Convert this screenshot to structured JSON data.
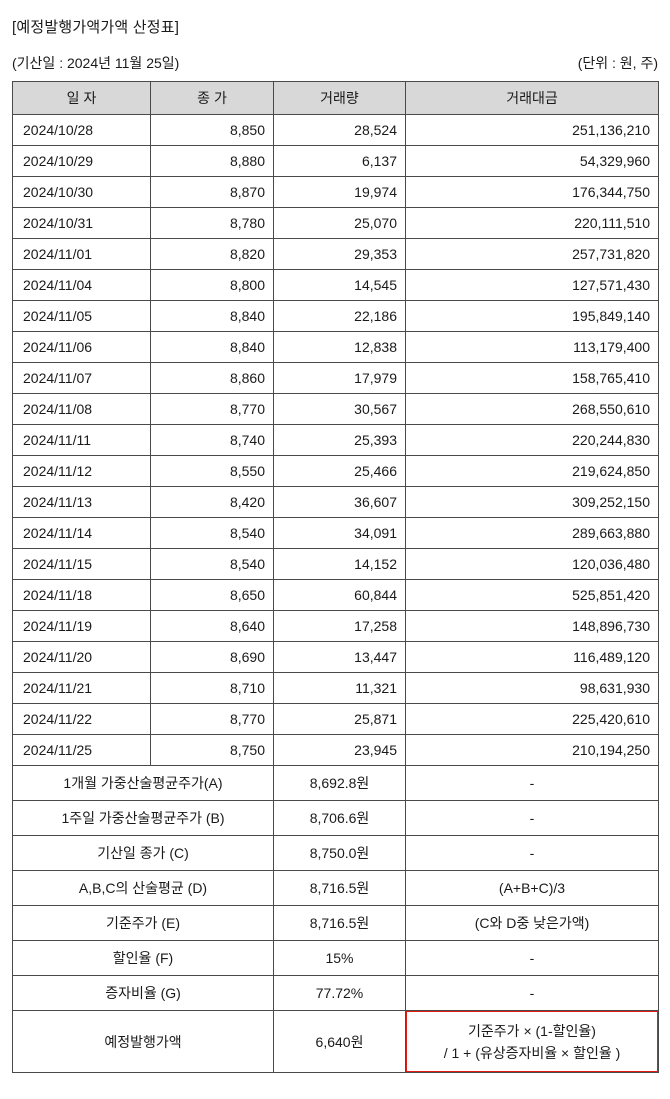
{
  "title": "[예정발행가액가액 산정표]",
  "subtitle_left": "(기산일 : 2024년 11월 25일)",
  "subtitle_right": "(단위 : 원, 주)",
  "table": {
    "headers": [
      "일 자",
      "종 가",
      "거래량",
      "거래대금"
    ],
    "rows": [
      [
        "2024/10/28",
        "8,850",
        "28,524",
        "251,136,210"
      ],
      [
        "2024/10/29",
        "8,880",
        "6,137",
        "54,329,960"
      ],
      [
        "2024/10/30",
        "8,870",
        "19,974",
        "176,344,750"
      ],
      [
        "2024/10/31",
        "8,780",
        "25,070",
        "220,111,510"
      ],
      [
        "2024/11/01",
        "8,820",
        "29,353",
        "257,731,820"
      ],
      [
        "2024/11/04",
        "8,800",
        "14,545",
        "127,571,430"
      ],
      [
        "2024/11/05",
        "8,840",
        "22,186",
        "195,849,140"
      ],
      [
        "2024/11/06",
        "8,840",
        "12,838",
        "113,179,400"
      ],
      [
        "2024/11/07",
        "8,860",
        "17,979",
        "158,765,410"
      ],
      [
        "2024/11/08",
        "8,770",
        "30,567",
        "268,550,610"
      ],
      [
        "2024/11/11",
        "8,740",
        "25,393",
        "220,244,830"
      ],
      [
        "2024/11/12",
        "8,550",
        "25,466",
        "219,624,850"
      ],
      [
        "2024/11/13",
        "8,420",
        "36,607",
        "309,252,150"
      ],
      [
        "2024/11/14",
        "8,540",
        "34,091",
        "289,663,880"
      ],
      [
        "2024/11/15",
        "8,540",
        "14,152",
        "120,036,480"
      ],
      [
        "2024/11/18",
        "8,650",
        "60,844",
        "525,851,420"
      ],
      [
        "2024/11/19",
        "8,640",
        "17,258",
        "148,896,730"
      ],
      [
        "2024/11/20",
        "8,690",
        "13,447",
        "116,489,120"
      ],
      [
        "2024/11/21",
        "8,710",
        "11,321",
        "98,631,930"
      ],
      [
        "2024/11/22",
        "8,770",
        "25,871",
        "225,420,610"
      ],
      [
        "2024/11/25",
        "8,750",
        "23,945",
        "210,194,250"
      ]
    ],
    "summary_rows": [
      {
        "label": "1개월 가중산술평균주가(A)",
        "value": "8,692.8원",
        "note": "-",
        "highlighted": false
      },
      {
        "label": "1주일 가중산술평균주가 (B)",
        "value": "8,706.6원",
        "note": "-",
        "highlighted": false
      },
      {
        "label": "기산일 종가 (C)",
        "value": "8,750.0원",
        "note": "-",
        "highlighted": false
      },
      {
        "label": "A,B,C의 산술평균 (D)",
        "value": "8,716.5원",
        "note": "(A+B+C)/3",
        "highlighted": false
      },
      {
        "label": "기준주가 (E)",
        "value": "8,716.5원",
        "note": "(C와 D중 낮은가액)",
        "highlighted": false
      },
      {
        "label": "할인율 (F)",
        "value": "15%",
        "note": "-",
        "highlighted": false
      },
      {
        "label": "증자비율 (G)",
        "value": "77.72%",
        "note": "-",
        "highlighted": false
      },
      {
        "label": "예정발행가액",
        "value": "6,640원",
        "note": "기준주가 × (1-할인율)\n/ 1 + (유상증자비율 × 할인율 )",
        "highlighted": true
      }
    ]
  },
  "highlight_color": "#e41b13",
  "header_bg": "#d8d8d8"
}
